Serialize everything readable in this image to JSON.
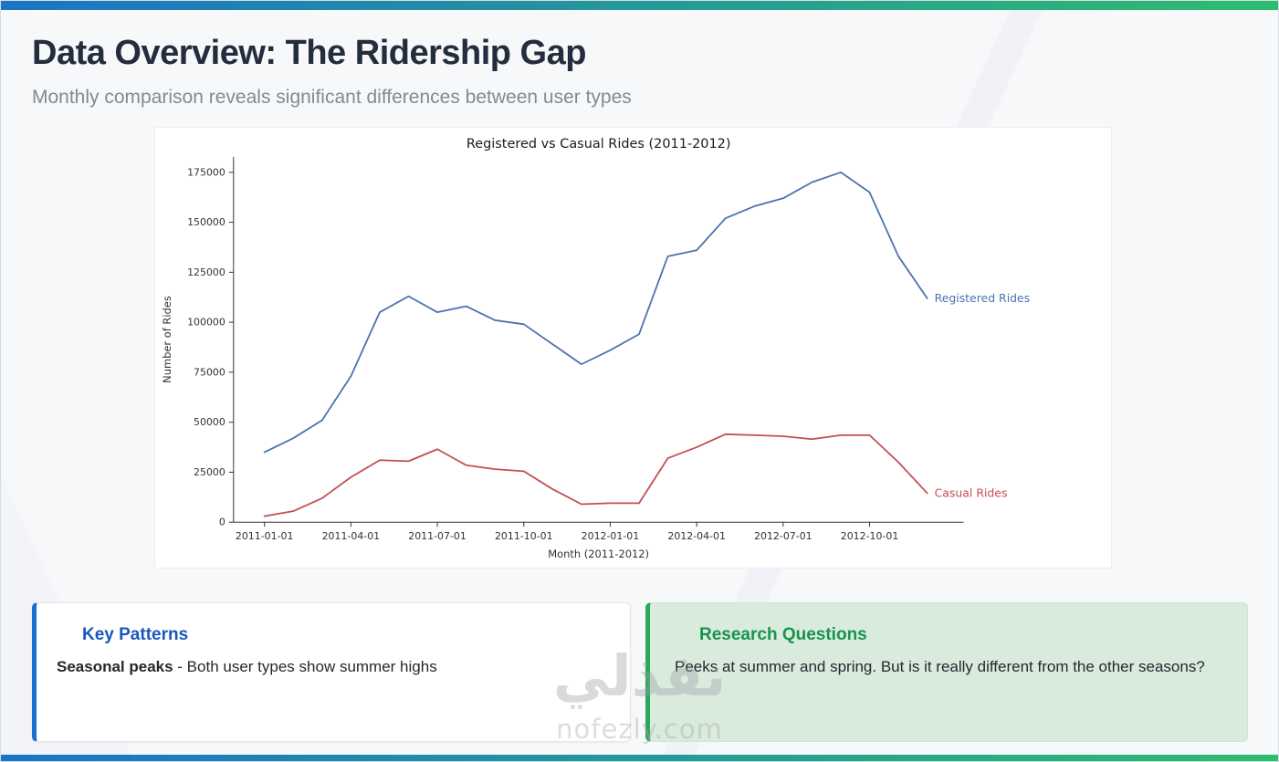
{
  "header": {
    "title": "Data Overview: The Ridership Gap",
    "subtitle": "Monthly comparison reveals significant differences between user types"
  },
  "chart_data": {
    "type": "line",
    "title": "Registered vs Casual Rides (2011-2012)",
    "xlabel": "Month (2011-2012)",
    "ylabel": "Number of Rides",
    "x": [
      "2011-01-01",
      "2011-02-01",
      "2011-03-01",
      "2011-04-01",
      "2011-05-01",
      "2011-06-01",
      "2011-07-01",
      "2011-08-01",
      "2011-09-01",
      "2011-10-01",
      "2011-11-01",
      "2011-12-01",
      "2012-01-01",
      "2012-02-01",
      "2012-03-01",
      "2012-04-01",
      "2012-05-01",
      "2012-06-01",
      "2012-07-01",
      "2012-08-01",
      "2012-09-01",
      "2012-10-01",
      "2012-11-01",
      "2012-12-01"
    ],
    "x_ticks": [
      "2011-01-01",
      "2011-04-01",
      "2011-07-01",
      "2011-10-01",
      "2012-01-01",
      "2012-04-01",
      "2012-07-01",
      "2012-10-01"
    ],
    "y_ticks": [
      0,
      25000,
      50000,
      75000,
      100000,
      125000,
      150000,
      175000
    ],
    "ylim": [
      0,
      183000
    ],
    "grid": false,
    "legend_position": "end-of-line-labels",
    "series": [
      {
        "name": "Registered Rides",
        "color": "#4C72B0",
        "values": [
          35000,
          42000,
          51000,
          73000,
          105000,
          113000,
          105000,
          108000,
          101000,
          99000,
          89000,
          79000,
          86000,
          94000,
          133000,
          136000,
          152000,
          158000,
          162000,
          170000,
          175000,
          165000,
          133000,
          112000
        ]
      },
      {
        "name": "Casual Rides",
        "color": "#C44E52",
        "values": [
          3000,
          5500,
          12000,
          22500,
          31000,
          30500,
          36500,
          28500,
          26500,
          25500,
          16500,
          9000,
          9500,
          9500,
          32000,
          37500,
          44000,
          43500,
          43000,
          41500,
          43500,
          43500,
          30000,
          14500
        ]
      }
    ]
  },
  "cards": {
    "key_patterns": {
      "title": "Key Patterns",
      "lead": "Seasonal peaks",
      "text": " - Both user types show summer highs"
    },
    "research_questions": {
      "title": "Research Questions",
      "text": "Peeks at summer and spring. But is it really different from the other seasons?"
    }
  },
  "watermark": {
    "logo_text": "نفذلي",
    "site_text": "nofezly.com"
  },
  "colors": {
    "accent_blue": "#1b74c5",
    "accent_green": "#2dbd6e",
    "line_registered": "#4C72B0",
    "line_casual": "#C44E52",
    "heading_blue": "#1a56c0",
    "heading_green": "#18934f"
  }
}
